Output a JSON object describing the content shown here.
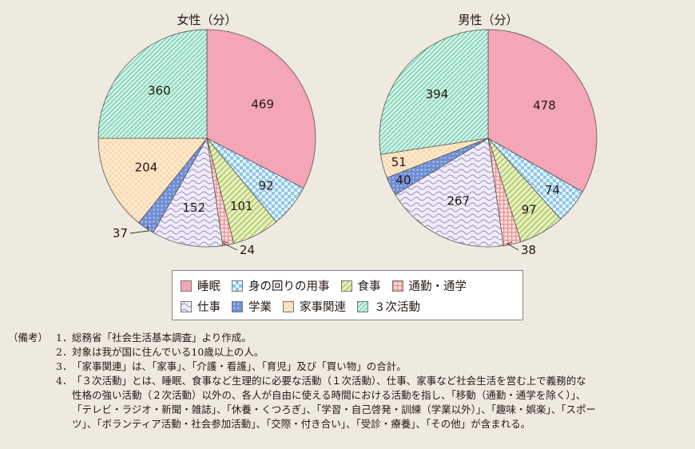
{
  "chart_data": [
    {
      "type": "pie",
      "title": "女性（分）",
      "unit": "分",
      "categories": [
        "睡眠",
        "身の回りの用事",
        "食事",
        "通勤・通学",
        "仕事",
        "学業",
        "家事関連",
        "3次活動"
      ],
      "values": [
        469,
        92,
        101,
        24,
        152,
        37,
        204,
        360
      ],
      "start_angle": "12 o'clock",
      "direction": "clockwise"
    },
    {
      "type": "pie",
      "title": "男性（分）",
      "unit": "分",
      "categories": [
        "睡眠",
        "身の回りの用事",
        "食事",
        "通勤・通学",
        "仕事",
        "学業",
        "家事関連",
        "3次活動"
      ],
      "values": [
        478,
        74,
        97,
        38,
        267,
        40,
        51,
        394
      ],
      "start_angle": "12 o'clock",
      "direction": "clockwise"
    }
  ],
  "titles": {
    "female": "女性（分）",
    "male": "男性（分）"
  },
  "legend": {
    "row1": [
      {
        "label": "睡眠",
        "pattern": "pat-sleep"
      },
      {
        "label": "身の回りの用事",
        "pattern": "pat-personal"
      },
      {
        "label": "食事",
        "pattern": "pat-meal"
      },
      {
        "label": "通勤・通学",
        "pattern": "pat-commute"
      }
    ],
    "row2": [
      {
        "label": "仕事",
        "pattern": "pat-work"
      },
      {
        "label": "学業",
        "pattern": "pat-study"
      },
      {
        "label": "家事関連",
        "pattern": "pat-house"
      },
      {
        "label": "３次活動",
        "pattern": "pat-leisure"
      }
    ]
  },
  "colors": {
    "sleep": "#f4a6b6",
    "personal": "#8fc6ea",
    "meal": "#c9dc8c",
    "commute": "#f2a3a3",
    "work": "#c9bde6",
    "study": "#6f8fd4",
    "house": "#f7c994",
    "leisure": "#8fdcc0",
    "background": "#efeae0"
  },
  "notes": {
    "prefix": "（備考）",
    "items": [
      {
        "num": "1．",
        "text": "総務省「社会生活基本調査」より作成。"
      },
      {
        "num": "2．",
        "text": "対象は我が国に住んでいる10歳以上の人。"
      },
      {
        "num": "3．",
        "text": "「家事関連」は、「家事」、「介護・看護」、「育児」及び「買い物」の合計。"
      },
      {
        "num": "4．",
        "text": "「３次活動」とは、睡眠、食事など生理的に必要な活動（１次活動）、仕事、家事など社会生活を営む上で義務的な\n性格の強い活動（２次活動）以外の、各人が自由に使える時間における活動を指し、「移動（通勤・通学を除く）」、\n「テレビ・ラジオ・新聞・雑誌」、「休養・くつろぎ」、「学習・自己啓発・訓練（学業以外）」、「趣味・娯楽」、「スポー\nツ」、「ボランティア活動・社会参加活動」、「交際・付き合い」、「受診・療養」、「その他」が含まれる。"
      }
    ]
  }
}
